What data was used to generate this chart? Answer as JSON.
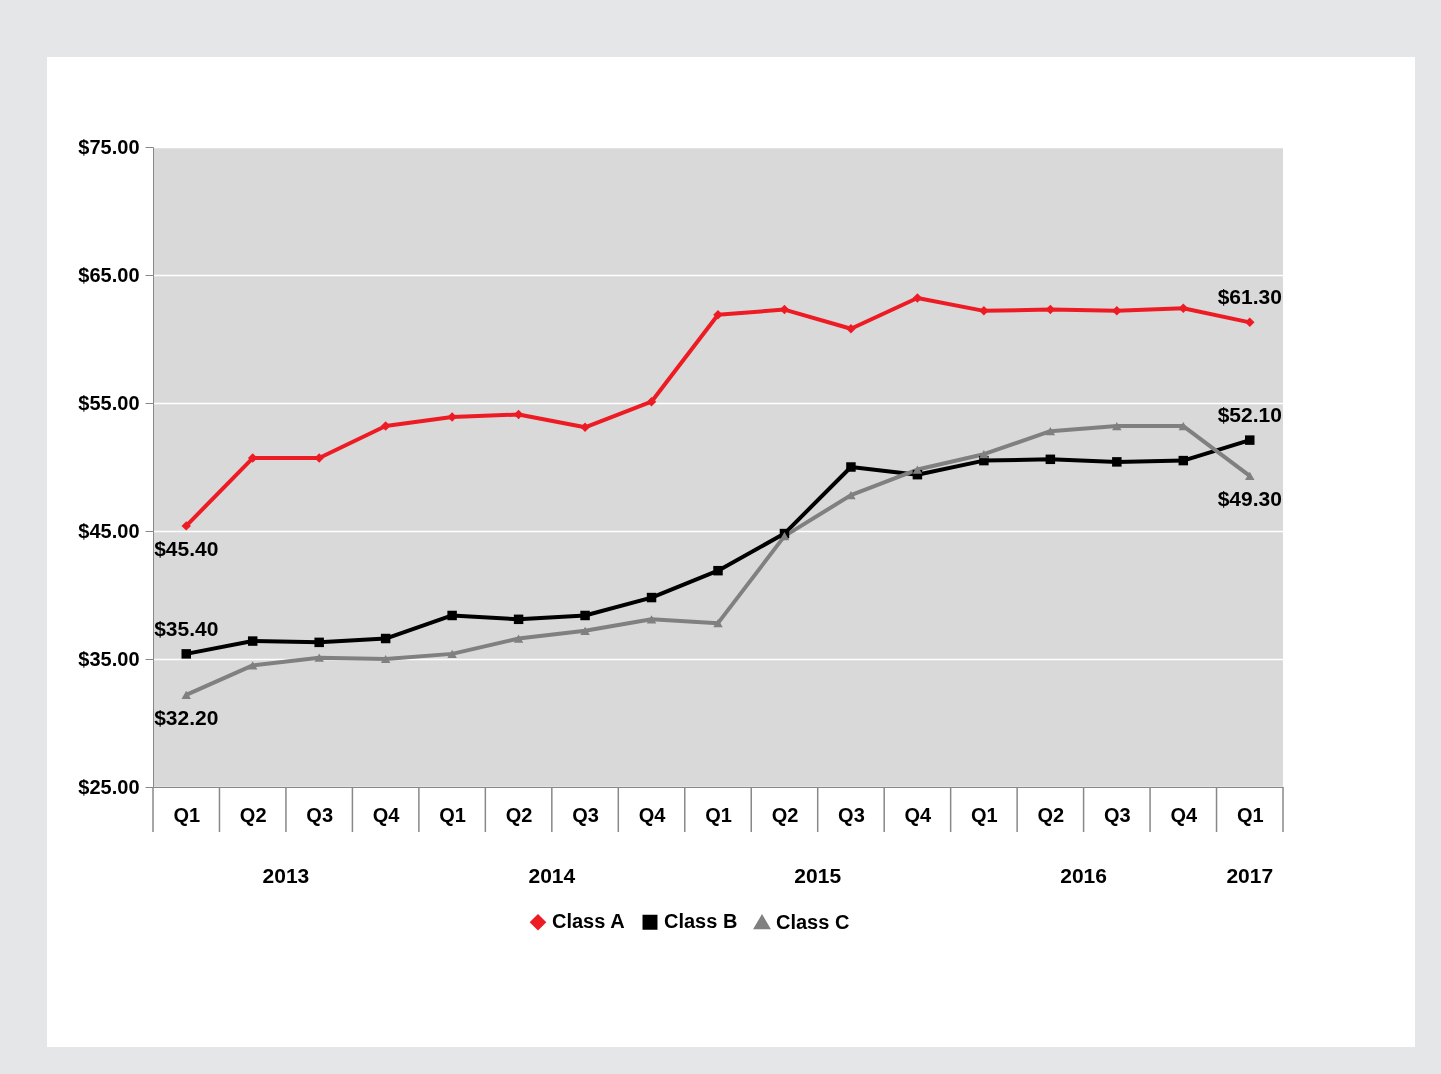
{
  "chart_data": {
    "type": "line",
    "categories": [
      "Q1",
      "Q2",
      "Q3",
      "Q4",
      "Q1",
      "Q2",
      "Q3",
      "Q4",
      "Q1",
      "Q2",
      "Q3",
      "Q4",
      "Q1",
      "Q2",
      "Q3",
      "Q4",
      "Q1"
    ],
    "annotations": [
      "2013",
      "2014",
      "2015",
      "2016",
      "2017"
    ],
    "series": [
      {
        "name": "Class A",
        "color": "#ed1c24",
        "marker": "diamond",
        "values": [
          45.4,
          50.7,
          50.7,
          53.2,
          53.9,
          54.1,
          53.1,
          55.1,
          61.9,
          62.3,
          60.8,
          63.2,
          62.2,
          62.3,
          62.2,
          62.4,
          61.3
        ],
        "value_labels": [
          "$45.40",
          null,
          null,
          null,
          null,
          null,
          null,
          null,
          null,
          null,
          null,
          null,
          null,
          null,
          null,
          null,
          "$61.30"
        ]
      },
      {
        "name": "Class B",
        "color": "#000000",
        "marker": "square",
        "values": [
          35.4,
          36.4,
          36.3,
          36.6,
          38.4,
          38.1,
          38.4,
          39.8,
          41.9,
          44.8,
          50.0,
          49.4,
          50.5,
          50.6,
          50.4,
          50.5,
          52.1
        ],
        "value_labels": [
          "$35.40",
          null,
          null,
          null,
          null,
          null,
          null,
          null,
          null,
          null,
          null,
          null,
          null,
          null,
          null,
          null,
          "$52.10"
        ]
      },
      {
        "name": "Class C",
        "color": "#808080",
        "marker": "triangle",
        "values": [
          32.2,
          34.5,
          35.1,
          35.0,
          35.4,
          36.6,
          37.2,
          38.1,
          37.8,
          44.6,
          47.8,
          49.8,
          51.0,
          52.8,
          53.2,
          53.2,
          49.3
        ],
        "value_labels": [
          "$32.20",
          null,
          null,
          null,
          null,
          null,
          null,
          null,
          null,
          null,
          null,
          null,
          null,
          null,
          null,
          null,
          "$49.30"
        ]
      }
    ],
    "ylim": [
      25,
      75
    ],
    "yticks": [
      {
        "value": 25,
        "label": "$25.00"
      },
      {
        "value": 35,
        "label": "$35.00"
      },
      {
        "value": 45,
        "label": "$45.00"
      },
      {
        "value": 55,
        "label": "$55.00"
      },
      {
        "value": 65,
        "label": "$65.00"
      },
      {
        "value": 75,
        "label": "$75.00"
      }
    ],
    "grid": "y",
    "legend": "bottom",
    "line_style": "solid"
  }
}
